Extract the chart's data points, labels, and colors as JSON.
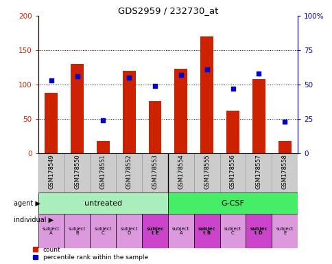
{
  "title": "GDS2959 / 232730_at",
  "samples": [
    "GSM178549",
    "GSM178550",
    "GSM178551",
    "GSM178552",
    "GSM178553",
    "GSM178554",
    "GSM178555",
    "GSM178556",
    "GSM178557",
    "GSM178558"
  ],
  "counts": [
    88,
    130,
    18,
    120,
    76,
    123,
    170,
    62,
    108,
    18
  ],
  "percentile_ranks": [
    53,
    56,
    24,
    55,
    49,
    57,
    61,
    47,
    58,
    23
  ],
  "ylim_left": [
    0,
    200
  ],
  "ylim_right": [
    0,
    100
  ],
  "yticks_left": [
    0,
    50,
    100,
    150,
    200
  ],
  "yticks_right": [
    0,
    25,
    50,
    75,
    100
  ],
  "ytick_labels_left": [
    "0",
    "50",
    "100",
    "150",
    "200"
  ],
  "ytick_labels_right": [
    "0",
    "25",
    "50",
    "75",
    "100%"
  ],
  "bar_color": "#cc2200",
  "dot_color": "#0000cc",
  "agent_groups": [
    {
      "label": "untreated",
      "start": 0,
      "end": 5,
      "color": "#aaeebb"
    },
    {
      "label": "G-CSF",
      "start": 5,
      "end": 10,
      "color": "#44ee66"
    }
  ],
  "individual_labels": [
    "subject\nA",
    "subject\nB",
    "subject\nC",
    "subject\nD",
    "subjec\nt E",
    "subject\nA",
    "subjec\nt B",
    "subject\nC",
    "subjec\nt D",
    "subject\nE"
  ],
  "individual_colors": [
    "#dd99dd",
    "#dd99dd",
    "#dd99dd",
    "#dd99dd",
    "#cc44cc",
    "#dd99dd",
    "#cc44cc",
    "#dd99dd",
    "#cc44cc",
    "#dd99dd"
  ],
  "individual_bold": [
    false,
    false,
    false,
    false,
    true,
    false,
    true,
    false,
    true,
    false
  ],
  "agent_label": "agent",
  "individual_label": "individual",
  "legend_count_label": "count",
  "legend_pct_label": "percentile rank within the sample",
  "grid_color": "#000000",
  "axis_label_color_left": "#cc2200",
  "axis_label_color_right": "#0000cc",
  "xticklabel_bg": "#cccccc",
  "xticklabel_border": "#999999"
}
